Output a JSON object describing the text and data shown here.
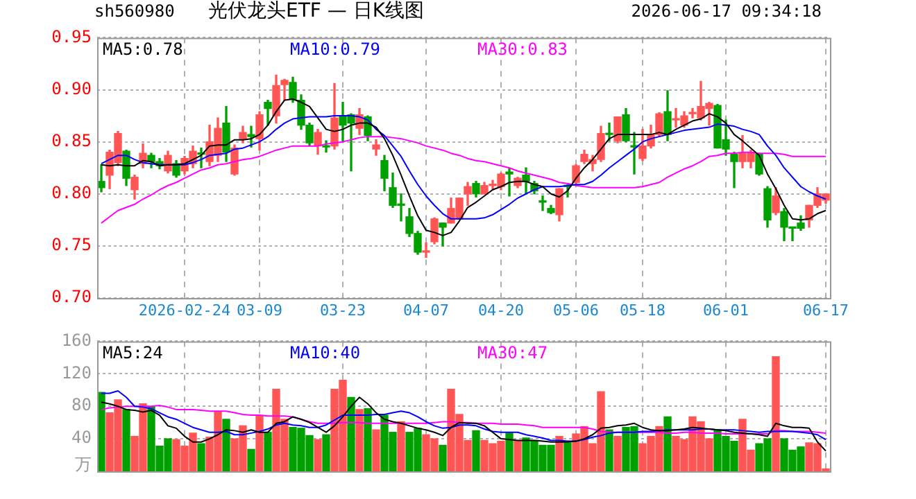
{
  "chart_data": [
    {
      "type": "candlestick",
      "title": "光伏龙头ETF — 日K线图",
      "subtitle": "sh560980",
      "annotations": [
        "2026-06-17 09:34:18"
      ],
      "categories": [
        null,
        null,
        null,
        null,
        null,
        null,
        null,
        null,
        null,
        null,
        "2026-02-24",
        null,
        null,
        null,
        null,
        null,
        null,
        null,
        null,
        "03-09",
        null,
        null,
        null,
        null,
        null,
        null,
        null,
        null,
        null,
        "03-23",
        null,
        null,
        null,
        null,
        null,
        null,
        null,
        null,
        null,
        "04-07",
        null,
        null,
        null,
        null,
        null,
        null,
        null,
        null,
        "04-20",
        null,
        null,
        null,
        null,
        null,
        null,
        null,
        null,
        "05-06",
        null,
        null,
        null,
        null,
        null,
        null,
        null,
        "05-18",
        null,
        null,
        null,
        null,
        null,
        null,
        null,
        null,
        null,
        "06-01",
        null,
        null,
        null,
        null,
        null,
        null,
        null,
        null,
        null,
        null,
        null,
        "06-17"
      ],
      "ohlc": [
        [
          0.812,
          0.828,
          0.802,
          0.806
        ],
        [
          0.818,
          0.842,
          0.805,
          0.84
        ],
        [
          0.83,
          0.86,
          0.827,
          0.858
        ],
        [
          0.841,
          0.842,
          0.808,
          0.815
        ],
        [
          0.804,
          0.818,
          0.795,
          0.816
        ],
        [
          0.829,
          0.848,
          0.825,
          0.839
        ],
        [
          0.837,
          0.839,
          0.825,
          0.831
        ],
        [
          0.831,
          0.834,
          0.824,
          0.827
        ],
        [
          0.822,
          0.841,
          0.82,
          0.837
        ],
        [
          0.829,
          0.832,
          0.816,
          0.818
        ],
        [
          0.822,
          0.836,
          0.819,
          0.834
        ],
        [
          0.829,
          0.846,
          0.825,
          0.841
        ],
        [
          0.839,
          0.844,
          0.825,
          0.838
        ],
        [
          0.831,
          0.866,
          0.827,
          0.85
        ],
        [
          0.837,
          0.873,
          0.831,
          0.863
        ],
        [
          0.868,
          0.884,
          0.831,
          0.84
        ],
        [
          0.819,
          0.847,
          0.818,
          0.844
        ],
        [
          0.853,
          0.865,
          0.849,
          0.859
        ],
        [
          0.857,
          0.865,
          0.845,
          0.855
        ],
        [
          0.853,
          0.879,
          0.842,
          0.876
        ],
        [
          0.888,
          0.89,
          0.866,
          0.882
        ],
        [
          0.875,
          0.914,
          0.868,
          0.904
        ],
        [
          0.905,
          0.91,
          0.89,
          0.909
        ],
        [
          0.907,
          0.912,
          0.888,
          0.891
        ],
        [
          0.89,
          0.895,
          0.862,
          0.866
        ],
        [
          0.866,
          0.868,
          0.846,
          0.849
        ],
        [
          0.846,
          0.862,
          0.838,
          0.859
        ],
        [
          0.846,
          0.851,
          0.84,
          0.845
        ],
        [
          0.846,
          0.906,
          0.843,
          0.873
        ],
        [
          0.875,
          0.888,
          0.85,
          0.866
        ],
        [
          0.876,
          0.877,
          0.822,
          0.868
        ],
        [
          0.863,
          0.882,
          0.857,
          0.876
        ],
        [
          0.874,
          0.875,
          0.851,
          0.856
        ],
        [
          0.843,
          0.852,
          0.837,
          0.847
        ],
        [
          0.832,
          0.837,
          0.803,
          0.815
        ],
        [
          0.806,
          0.82,
          0.787,
          0.789
        ],
        [
          0.79,
          0.8,
          0.774,
          0.789
        ],
        [
          0.778,
          0.786,
          0.759,
          0.762
        ],
        [
          0.762,
          0.764,
          0.742,
          0.744
        ],
        [
          0.744,
          0.753,
          0.739,
          0.745
        ],
        [
          0.754,
          0.777,
          0.752,
          0.776
        ],
        [
          0.772,
          0.772,
          0.75,
          0.768
        ],
        [
          0.772,
          0.796,
          0.772,
          0.786
        ],
        [
          0.776,
          0.796,
          0.776,
          0.796
        ],
        [
          0.8,
          0.811,
          0.789,
          0.807
        ],
        [
          0.81,
          0.812,
          0.797,
          0.8
        ],
        [
          0.8,
          0.811,
          0.8,
          0.808
        ],
        [
          0.808,
          0.813,
          0.804,
          0.809
        ],
        [
          0.807,
          0.82,
          0.804,
          0.819
        ],
        [
          0.821,
          0.824,
          0.798,
          0.819
        ],
        [
          0.808,
          0.816,
          0.806,
          0.815
        ],
        [
          0.818,
          0.825,
          0.8,
          0.812
        ],
        [
          0.81,
          0.812,
          0.8,
          0.803
        ],
        [
          0.793,
          0.798,
          0.784,
          0.792
        ],
        [
          0.786,
          0.789,
          0.781,
          0.782
        ],
        [
          0.78,
          0.805,
          0.774,
          0.805
        ],
        [
          0.808,
          0.809,
          0.797,
          0.807
        ],
        [
          0.811,
          0.828,
          0.809,
          0.827
        ],
        [
          0.831,
          0.842,
          0.829,
          0.838
        ],
        [
          0.829,
          0.837,
          0.822,
          0.833
        ],
        [
          0.833,
          0.865,
          0.831,
          0.858
        ],
        [
          0.858,
          0.868,
          0.851,
          0.857
        ],
        [
          0.851,
          0.874,
          0.849,
          0.874
        ],
        [
          0.876,
          0.882,
          0.85,
          0.851
        ],
        [
          0.846,
          0.859,
          0.819,
          0.845
        ],
        [
          0.834,
          0.862,
          0.832,
          0.846
        ],
        [
          0.846,
          0.866,
          0.844,
          0.857
        ],
        [
          0.857,
          0.878,
          0.855,
          0.877
        ],
        [
          0.879,
          0.899,
          0.851,
          0.857
        ],
        [
          0.871,
          0.882,
          0.864,
          0.872
        ],
        [
          0.866,
          0.879,
          0.864,
          0.875
        ],
        [
          0.877,
          0.882,
          0.873,
          0.877
        ],
        [
          0.873,
          0.908,
          0.871,
          0.884
        ],
        [
          0.882,
          0.888,
          0.866,
          0.887
        ],
        [
          0.885,
          0.886,
          0.844,
          0.844
        ],
        [
          0.852,
          0.871,
          0.837,
          0.843
        ],
        [
          0.838,
          0.84,
          0.806,
          0.831
        ],
        [
          0.831,
          0.856,
          0.825,
          0.839
        ],
        [
          0.831,
          0.842,
          0.825,
          0.84
        ],
        [
          0.838,
          0.839,
          0.818,
          0.819
        ],
        [
          0.805,
          0.807,
          0.768,
          0.775
        ],
        [
          0.782,
          0.806,
          0.78,
          0.798
        ],
        [
          0.783,
          0.786,
          0.755,
          0.768
        ],
        [
          0.768,
          0.768,
          0.755,
          0.767
        ],
        [
          0.772,
          0.779,
          0.765,
          0.767
        ],
        [
          0.775,
          0.789,
          0.768,
          0.789
        ],
        [
          0.789,
          0.806,
          0.787,
          0.8
        ],
        [
          0.794,
          0.8,
          0.791,
          0.8
        ]
      ],
      "colors": [
        "#00a000",
        "#ff5555",
        "#ff5555",
        "#00a000",
        "#ff5555",
        "#ff5555",
        "#00a000",
        "#00a000",
        "#ff5555",
        "#00a000",
        "#ff5555",
        "#ff5555",
        "#00a000",
        "#ff5555",
        "#ff5555",
        "#00a000",
        "#ff5555",
        "#ff5555",
        "#00a000",
        "#ff5555",
        "#00a000",
        "#ff5555",
        "#ff5555",
        "#00a000",
        "#00a000",
        "#00a000",
        "#ff5555",
        "#00a000",
        "#ff5555",
        "#00a000",
        "#00a000",
        "#ff5555",
        "#00a000",
        "#ff5555",
        "#00a000",
        "#00a000",
        "#00a000",
        "#00a000",
        "#00a000",
        "#ff5555",
        "#ff5555",
        "#00a000",
        "#ff5555",
        "#ff5555",
        "#ff5555",
        "#00a000",
        "#ff5555",
        "#ff5555",
        "#ff5555",
        "#00a000",
        "#ff5555",
        "#00a000",
        "#00a000",
        "#00a000",
        "#00a000",
        "#ff5555",
        "#00a000",
        "#ff5555",
        "#ff5555",
        "#ff5555",
        "#ff5555",
        "#00a000",
        "#ff5555",
        "#00a000",
        "#00a000",
        "#ff5555",
        "#ff5555",
        "#ff5555",
        "#00a000",
        "#ff5555",
        "#ff5555",
        "#ff5555",
        "#ff5555",
        "#ff5555",
        "#00a000",
        "#00a000",
        "#00a000",
        "#ff5555",
        "#ff5555",
        "#00a000",
        "#00a000",
        "#ff5555",
        "#00a000",
        "#00a000",
        "#00a000",
        "#ff5555",
        "#ff5555",
        "#ff5555"
      ],
      "series": [
        {
          "type": "line",
          "name": "MA5:0.78",
          "color": "#000000",
          "values": [
            0.828,
            0.827,
            0.828,
            0.827,
            0.827,
            0.832,
            0.831,
            0.827,
            0.828,
            0.828,
            0.829,
            0.833,
            0.837,
            0.846,
            0.847,
            0.847,
            0.852,
            0.852,
            0.853,
            0.857,
            0.866,
            0.879,
            0.89,
            0.891,
            0.888,
            0.884,
            0.873,
            0.862,
            0.86,
            0.862,
            0.866,
            0.868,
            0.868,
            0.864,
            0.853,
            0.837,
            0.818,
            0.798,
            0.779,
            0.765,
            0.763,
            0.76,
            0.763,
            0.774,
            0.787,
            0.792,
            0.798,
            0.804,
            0.807,
            0.811,
            0.812,
            0.812,
            0.809,
            0.807,
            0.8,
            0.797,
            0.803,
            0.815,
            0.825,
            0.833,
            0.843,
            0.853,
            0.857,
            0.857,
            0.857,
            0.857,
            0.857,
            0.859,
            0.857,
            0.862,
            0.866,
            0.87,
            0.872,
            0.877,
            0.874,
            0.868,
            0.857,
            0.851,
            0.844,
            0.837,
            0.819,
            0.805,
            0.789,
            0.776,
            0.775,
            0.776,
            0.781,
            0.784
          ]
        },
        {
          "type": "line",
          "name": "MA10:0.79",
          "color": "#0000ff",
          "values": [
            0.829,
            0.833,
            0.837,
            0.837,
            0.833,
            0.83,
            0.829,
            0.828,
            0.828,
            0.828,
            0.828,
            0.83,
            0.833,
            0.837,
            0.838,
            0.839,
            0.843,
            0.844,
            0.847,
            0.85,
            0.855,
            0.862,
            0.868,
            0.872,
            0.873,
            0.874,
            0.874,
            0.874,
            0.875,
            0.875,
            0.875,
            0.874,
            0.871,
            0.862,
            0.856,
            0.846,
            0.836,
            0.822,
            0.809,
            0.798,
            0.789,
            0.781,
            0.776,
            0.776,
            0.776,
            0.776,
            0.777,
            0.78,
            0.785,
            0.79,
            0.796,
            0.8,
            0.804,
            0.807,
            0.807,
            0.807,
            0.808,
            0.809,
            0.809,
            0.812,
            0.818,
            0.825,
            0.831,
            0.837,
            0.843,
            0.85,
            0.853,
            0.855,
            0.857,
            0.859,
            0.861,
            0.862,
            0.863,
            0.864,
            0.867,
            0.866,
            0.865,
            0.862,
            0.86,
            0.857,
            0.846,
            0.837,
            0.825,
            0.816,
            0.807,
            0.802,
            0.798,
            0.795
          ]
        },
        {
          "type": "line",
          "name": "MA30:0.83",
          "color": "#ff00ff",
          "values": [
            0.772,
            0.778,
            0.784,
            0.787,
            0.79,
            0.795,
            0.799,
            0.804,
            0.808,
            0.811,
            0.815,
            0.819,
            0.823,
            0.825,
            0.828,
            0.829,
            0.831,
            0.833,
            0.834,
            0.836,
            0.839,
            0.842,
            0.844,
            0.846,
            0.846,
            0.846,
            0.846,
            0.848,
            0.849,
            0.85,
            0.852,
            0.854,
            0.855,
            0.855,
            0.855,
            0.854,
            0.853,
            0.851,
            0.849,
            0.846,
            0.844,
            0.842,
            0.839,
            0.837,
            0.834,
            0.832,
            0.831,
            0.829,
            0.827,
            0.825,
            0.822,
            0.82,
            0.818,
            0.816,
            0.814,
            0.811,
            0.81,
            0.808,
            0.807,
            0.806,
            0.806,
            0.806,
            0.806,
            0.806,
            0.806,
            0.807,
            0.809,
            0.811,
            0.816,
            0.82,
            0.824,
            0.827,
            0.831,
            0.836,
            0.837,
            0.839,
            0.839,
            0.84,
            0.84,
            0.839,
            0.839,
            0.839,
            0.838,
            0.836,
            0.836,
            0.836,
            0.836,
            0.836
          ]
        }
      ],
      "ylim": [
        0.7,
        0.95
      ],
      "yticks": [
        {
          "value": 0.7,
          "label": "0.70"
        },
        0.75,
        {
          "value": 0.8,
          "label": "0.80"
        },
        0.85,
        {
          "value": 0.9,
          "label": "0.90"
        },
        0.95
      ],
      "grid": true,
      "legend": "top"
    },
    {
      "type": "bar",
      "ylabel": "万",
      "categories": [
        null,
        null,
        null,
        null,
        null,
        null,
        null,
        null,
        null,
        null,
        null,
        null,
        null,
        null,
        null,
        null,
        null,
        null,
        null,
        null,
        null,
        null,
        null,
        null,
        null,
        null,
        null,
        null,
        null,
        null,
        null,
        null,
        null,
        null,
        null,
        null,
        null,
        null,
        null,
        null,
        null,
        null,
        null,
        null,
        null,
        null,
        null,
        null,
        null,
        null,
        null,
        null,
        null,
        null,
        null,
        null,
        null,
        null,
        null,
        null,
        null,
        null,
        null,
        null,
        null,
        null,
        null,
        null,
        null,
        null,
        null,
        null,
        null,
        null,
        null,
        null,
        null,
        null,
        null,
        null,
        null,
        null,
        null,
        null,
        null,
        null,
        null,
        null
      ],
      "series": [
        {
          "type": "bar",
          "values": [
            97,
            72,
            88,
            76,
            43,
            83,
            79,
            31,
            40,
            39,
            31,
            47,
            34,
            42,
            73,
            64,
            40,
            56,
            27,
            68,
            48,
            101,
            64,
            54,
            53,
            44,
            39,
            45,
            101,
            112,
            91,
            76,
            77,
            51,
            69,
            48,
            61,
            48,
            53,
            45,
            40,
            32,
            101,
            70,
            38,
            50,
            38,
            34,
            37,
            47,
            37,
            41,
            37,
            32,
            32,
            43,
            35,
            46,
            55,
            34,
            98,
            51,
            43,
            54,
            55,
            34,
            43,
            55,
            67,
            43,
            39,
            67,
            61,
            40,
            50,
            43,
            37,
            64,
            26,
            34,
            40,
            141,
            40,
            26,
            30,
            35,
            34,
            3
          ],
          "colors": [
            "#00a000",
            "#ff5555",
            "#ff5555",
            "#00a000",
            "#ff5555",
            "#ff5555",
            "#00a000",
            "#00a000",
            "#00a000",
            "#ff5555",
            "#ff5555",
            "#ff5555",
            "#00a000",
            "#ff5555",
            "#ff5555",
            "#00a000",
            "#ff5555",
            "#ff5555",
            "#00a000",
            "#ff5555",
            "#00a000",
            "#ff5555",
            "#ff5555",
            "#00a000",
            "#00a000",
            "#00a000",
            "#ff5555",
            "#00a000",
            "#ff5555",
            "#ff5555",
            "#00a000",
            "#ff5555",
            "#00a000",
            "#ff5555",
            "#00a000",
            "#00a000",
            "#ff5555",
            "#00a000",
            "#00a000",
            "#ff5555",
            "#ff5555",
            "#00a000",
            "#ff5555",
            "#ff5555",
            "#ff5555",
            "#00a000",
            "#ff5555",
            "#ff5555",
            "#ff5555",
            "#00a000",
            "#ff5555",
            "#00a000",
            "#00a000",
            "#00a000",
            "#00a000",
            "#ff5555",
            "#00a000",
            "#ff5555",
            "#ff5555",
            "#ff5555",
            "#ff5555",
            "#00a000",
            "#ff5555",
            "#00a000",
            "#00a000",
            "#ff5555",
            "#ff5555",
            "#ff5555",
            "#00a000",
            "#ff5555",
            "#ff5555",
            "#ff5555",
            "#ff5555",
            "#ff5555",
            "#00a000",
            "#00a000",
            "#00a000",
            "#ff5555",
            "#ff5555",
            "#00a000",
            "#00a000",
            "#ff5555",
            "#00a000",
            "#00a000",
            "#00a000",
            "#ff5555",
            "#ff5555",
            "#ff5555"
          ]
        },
        {
          "type": "line",
          "name": "MA5:24",
          "color": "#000000",
          "values": [
            85,
            83,
            80,
            76,
            75,
            73,
            75,
            69,
            56,
            53,
            43,
            36,
            36,
            40,
            45,
            51,
            50,
            48,
            51,
            48,
            48,
            59,
            61,
            67,
            64,
            60,
            54,
            48,
            56,
            67,
            80,
            91,
            83,
            72,
            64,
            61,
            59,
            56,
            53,
            51,
            48,
            44,
            54,
            60,
            59,
            59,
            56,
            48,
            40,
            39,
            38,
            38,
            38,
            37,
            36,
            36,
            36,
            37,
            40,
            45,
            53,
            54,
            56,
            57,
            59,
            54,
            51,
            50,
            50,
            51,
            52,
            54,
            53,
            52,
            51,
            50,
            48,
            47,
            46,
            45,
            43,
            59,
            56,
            54,
            54,
            53,
            36,
            25
          ]
        },
        {
          "type": "line",
          "name": "MA10:40",
          "color": "#0000ff",
          "values": [
            96,
            96,
            99,
            91,
            80,
            79,
            77,
            72,
            67,
            64,
            59,
            54,
            51,
            48,
            48,
            49,
            45,
            45,
            47,
            49,
            52,
            57,
            59,
            57,
            56,
            54,
            54,
            57,
            63,
            69,
            69,
            69,
            69,
            70,
            70,
            72,
            74,
            72,
            67,
            61,
            56,
            53,
            54,
            57,
            57,
            56,
            52,
            49,
            48,
            48,
            48,
            45,
            43,
            41,
            38,
            38,
            37,
            37,
            39,
            42,
            44,
            47,
            48,
            48,
            48,
            49,
            49,
            50,
            51,
            51,
            51,
            51,
            52,
            52,
            51,
            51,
            51,
            50,
            49,
            48,
            49,
            49,
            49,
            49,
            48,
            47,
            45,
            39
          ]
        },
        {
          "type": "line",
          "name": "MA30:47",
          "color": "#ff00ff",
          "values": [
            76,
            78,
            79,
            80,
            80,
            80,
            80,
            81,
            79,
            76,
            76,
            76,
            75,
            74,
            74,
            74,
            72,
            70,
            69,
            69,
            68,
            68,
            68,
            67,
            64,
            61,
            59,
            59,
            59,
            60,
            60,
            60,
            59,
            59,
            59,
            59,
            59,
            59,
            59,
            59,
            60,
            61,
            61,
            60,
            60,
            59,
            59,
            59,
            58,
            58,
            58,
            57,
            56,
            54,
            54,
            54,
            54,
            54,
            54,
            52,
            49,
            48,
            48,
            48,
            48,
            48,
            48,
            48,
            47,
            47,
            48,
            48,
            47,
            47,
            47,
            46,
            46,
            46,
            46,
            46,
            46,
            50,
            50,
            49,
            49,
            49,
            48,
            47
          ]
        }
      ],
      "ylim": [
        0,
        160
      ],
      "yticks": [
        40,
        80,
        120,
        160
      ],
      "grid": true,
      "legend": "top",
      "tick_labels": "y"
    }
  ]
}
